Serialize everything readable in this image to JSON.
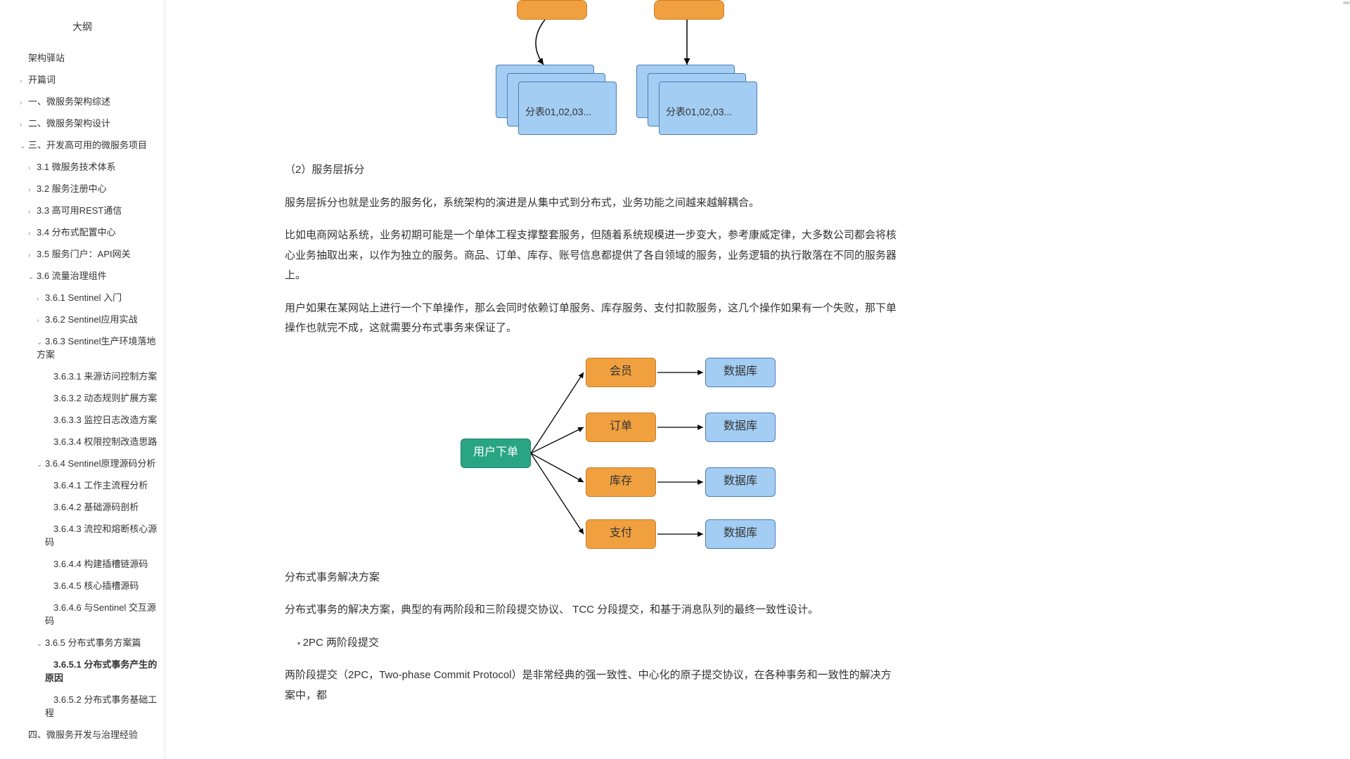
{
  "sidebar": {
    "title": "大纲",
    "items": [
      {
        "label": "架构驿站",
        "level": 0,
        "arrow": ""
      },
      {
        "label": "开篇词",
        "level": 0,
        "arrow": "›"
      },
      {
        "label": "一、微服务架构综述",
        "level": 0,
        "arrow": "›"
      },
      {
        "label": "二、微服务架构设计",
        "level": 0,
        "arrow": "›"
      },
      {
        "label": "三、开发高可用的微服务项目",
        "level": 0,
        "arrow": "⌄"
      },
      {
        "label": "3.1 微服务技术体系",
        "level": 1,
        "arrow": "›"
      },
      {
        "label": "3.2 服务注册中心",
        "level": 1,
        "arrow": "›"
      },
      {
        "label": "3.3 高可用REST通信",
        "level": 1,
        "arrow": "›"
      },
      {
        "label": "3.4 分布式配置中心",
        "level": 1,
        "arrow": "›"
      },
      {
        "label": "3.5 服务门户：API网关",
        "level": 1,
        "arrow": "›"
      },
      {
        "label": "3.6 流量治理组件",
        "level": 1,
        "arrow": "⌄"
      },
      {
        "label": "3.6.1 Sentinel 入门",
        "level": 2,
        "arrow": "›"
      },
      {
        "label": "3.6.2 Sentinel应用实战",
        "level": 2,
        "arrow": "›"
      },
      {
        "label": "3.6.3 Sentinel生产环境落地方案",
        "level": 2,
        "arrow": "⌄"
      },
      {
        "label": "3.6.3.1 来源访问控制方案",
        "level": 3,
        "arrow": ""
      },
      {
        "label": "3.6.3.2 动态规则扩展方案",
        "level": 3,
        "arrow": ""
      },
      {
        "label": "3.6.3.3 监控日志改造方案",
        "level": 3,
        "arrow": ""
      },
      {
        "label": "3.6.3.4 权限控制改造思路",
        "level": 3,
        "arrow": ""
      },
      {
        "label": "3.6.4 Sentinel原理源码分析",
        "level": 2,
        "arrow": "⌄"
      },
      {
        "label": "3.6.4.1 工作主流程分析",
        "level": 3,
        "arrow": ""
      },
      {
        "label": "3.6.4.2 基础源码剖析",
        "level": 3,
        "arrow": ""
      },
      {
        "label": "3.6.4.3 流控和熔断核心源码",
        "level": 3,
        "arrow": ""
      },
      {
        "label": "3.6.4.4 构建插槽链源码",
        "level": 3,
        "arrow": ""
      },
      {
        "label": "3.6.4.5 核心插槽源码",
        "level": 3,
        "arrow": ""
      },
      {
        "label": "3.6.4.6 与Sentinel 交互源码",
        "level": 3,
        "arrow": ""
      },
      {
        "label": "3.6.5 分布式事务方案篇",
        "level": 2,
        "arrow": "⌄"
      },
      {
        "label": "3.6.5.1 分布式事务产生的原因",
        "level": 3,
        "arrow": "",
        "active": true
      },
      {
        "label": "3.6.5.2 分布式事务基础工程",
        "level": 3,
        "arrow": ""
      },
      {
        "label": "四、微服务开发与治理经验",
        "level": 0,
        "arrow": ""
      }
    ]
  },
  "content": {
    "tableLabel1": "分表01,02,03...",
    "tableLabel2": "分表01,02,03...",
    "heading1": "（2）服务层拆分",
    "p1": "服务层拆分也就是业务的服务化，系统架构的演进是从集中式到分布式，业务功能之间越来越解耦合。",
    "p2": "比如电商网站系统，业务初期可能是一个单体工程支撑整套服务，但随着系统规模进一步变大，参考康威定律，大多数公司都会将核心业务抽取出来，以作为独立的服务。商品、订单、库存、账号信息都提供了各自领域的服务，业务逻辑的执行散落在不同的服务器上。",
    "p3": "用户如果在某网站上进行一个下单操作，那么会同时依赖订单服务、库存服务、支付扣款服务，这几个操作如果有一个失败，那下单操作也就完不成，这就需要分布式事务来保证了。",
    "heading2": "分布式事务解决方案",
    "p4": "分布式事务的解决方案，典型的有两阶段和三阶段提交协议、 TCC 分段提交，和基于消息队列的最终一致性设计。",
    "bullet1": "2PC 两阶段提交",
    "p5": "两阶段提交（2PC，Two-phase Commit Protocol）是非常经典的强一致性、中心化的原子提交协议，在各种事务和一致性的解决方案中，都"
  },
  "flow": {
    "root": "用户下单",
    "services": [
      "会员",
      "订单",
      "库存",
      "支付"
    ],
    "db": "数据库",
    "colors": {
      "root_bg": "#2aa583",
      "service_bg": "#f1a03f",
      "db_bg": "#a3cdf3",
      "line": "#000000"
    }
  },
  "sharding": {
    "orange_bg": "#f1a03f",
    "card_bg": "#a3cdf3",
    "card_border": "#4f7db5"
  }
}
